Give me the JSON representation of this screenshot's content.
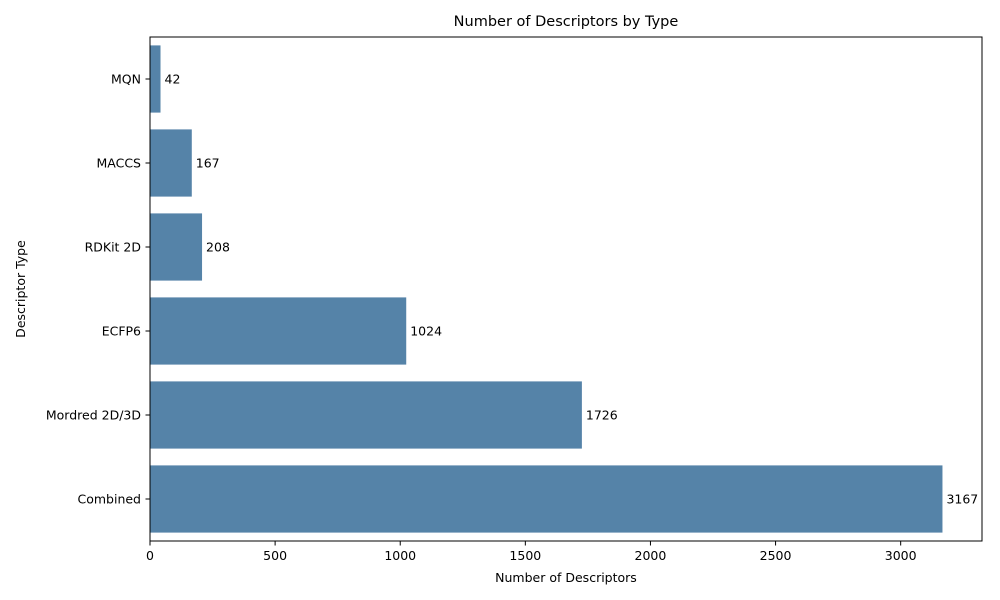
{
  "chart_data": {
    "type": "bar",
    "orientation": "horizontal",
    "title": "Number of Descriptors by Type",
    "xlabel": "Number of Descriptors",
    "ylabel": "Descriptor Type",
    "categories": [
      "MQN",
      "MACCS",
      "RDKit 2D",
      "ECFP6",
      "Mordred 2D/3D",
      "Combined"
    ],
    "values": [
      42,
      167,
      208,
      1024,
      1726,
      3167
    ],
    "data_labels": [
      "42",
      "167",
      "208",
      "1024",
      "1726",
      "3167"
    ],
    "xlim": [
      0,
      3325
    ],
    "xticks": [
      0,
      500,
      1000,
      1500,
      2000,
      2500,
      3000
    ],
    "xtick_labels": [
      "0",
      "500",
      "1000",
      "1500",
      "2000",
      "2500",
      "3000"
    ],
    "grid": false,
    "legend": "none",
    "bar_color": "#5583a8"
  }
}
